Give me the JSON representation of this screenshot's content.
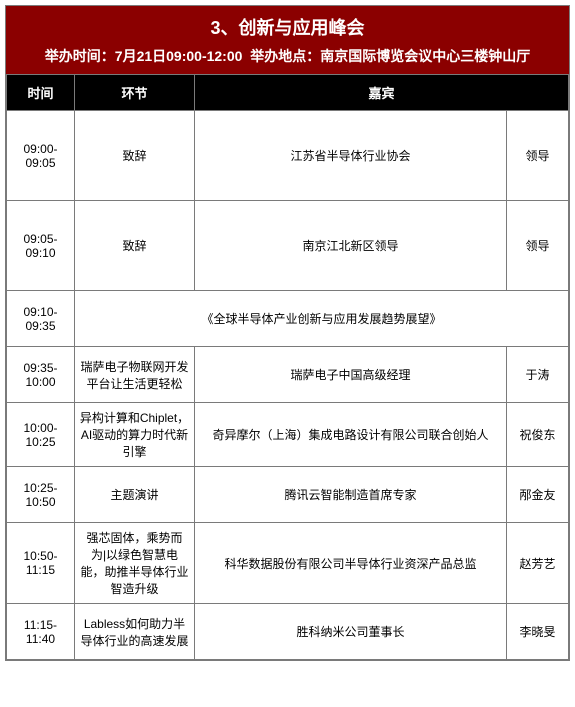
{
  "header": {
    "title": "3、创新与应用峰会",
    "datetime_label": "举办时间：",
    "datetime_value": "7月21日09:00-12:00",
    "venue_label": "举办地点：",
    "venue_value": "南京国际博览会议中心三楼钟山厅"
  },
  "colors": {
    "header_bg": "#8b0000",
    "header_text": "#ffffff",
    "th_bg": "#000000",
    "th_text": "#ffffff",
    "border": "#7a7a7a",
    "cell_text": "#000000",
    "page_bg": "#ffffff"
  },
  "columns": {
    "time": "时间",
    "segment": "环节",
    "guest": "嘉宾",
    "role": ""
  },
  "rows": [
    {
      "time": "09:00-09:05",
      "segment": "致辞",
      "guest": "江苏省半导体行业协会",
      "role": "领导",
      "height": "h1",
      "colspan": 1
    },
    {
      "time": "09:05-09:10",
      "segment": "致辞",
      "guest": "南京江北新区领导",
      "role": "领导",
      "height": "h1",
      "colspan": 1
    },
    {
      "time": "09:10-09:35",
      "segment": "",
      "guest": "《全球半导体产业创新与应用发展趋势展望》",
      "role": "",
      "height": "h2",
      "colspan": 3
    },
    {
      "time": "09:35-10:00",
      "segment": "瑞萨电子物联网开发平台让生活更轻松",
      "guest": "瑞萨电子中国高级经理",
      "role": "于涛",
      "height": "h2",
      "colspan": 1
    },
    {
      "time": "10:00-10:25",
      "segment": "异构计算和Chiplet，AI驱动的算力时代新引擎",
      "guest": "奇异摩尔（上海）集成电路设计有限公司联合创始人",
      "role": "祝俊东",
      "height": "h3",
      "colspan": 1
    },
    {
      "time": "10:25-10:50",
      "segment": "主题演讲",
      "guest": "腾讯云智能制造首席专家",
      "role": "邴金友",
      "height": "h2",
      "colspan": 1
    },
    {
      "time": "10:50-11:15",
      "segment": "强芯固体，乘势而为|以绿色智慧电能，助推半导体行业智造升级",
      "guest": "科华数据股份有限公司半导体行业资深产品总监",
      "role": "赵芳艺",
      "height": "h3",
      "colspan": 1
    },
    {
      "time": "11:15-11:40",
      "segment": "Labless如何助力半导体行业的高速发展",
      "guest": "胜科纳米公司董事长",
      "role": "李晓旻",
      "height": "h2",
      "colspan": 1
    }
  ]
}
